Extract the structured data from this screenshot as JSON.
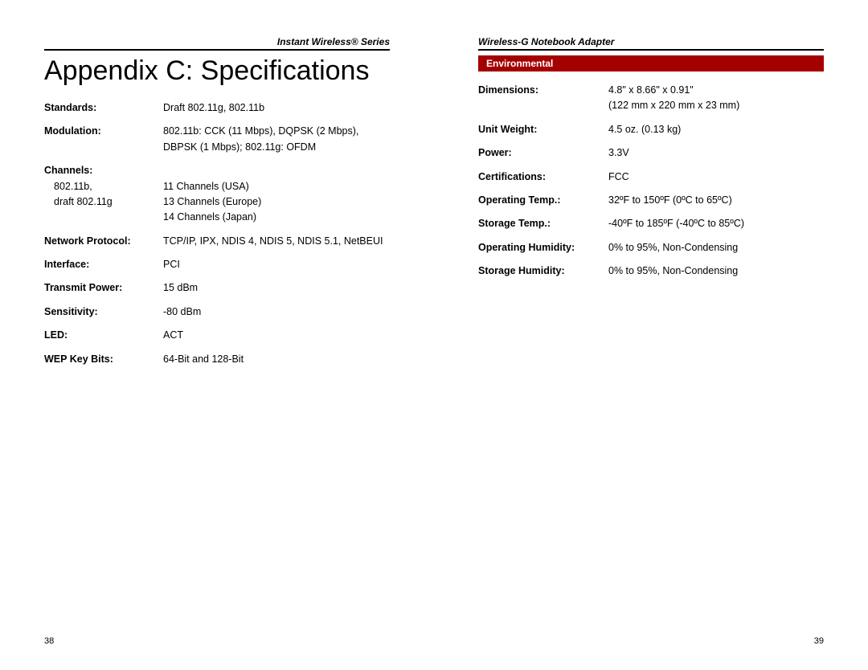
{
  "left": {
    "header": "Instant Wireless® Series",
    "title": "Appendix C: Specifications",
    "rows": [
      {
        "label": "Standards:",
        "value": "Draft 802.11g, 802.11b"
      },
      {
        "label": "Modulation:",
        "value": "802.11b: CCK (11 Mbps), DQPSK (2 Mbps), DBPSK (1 Mbps); 802.11g: OFDM"
      },
      {
        "label": "Channels:",
        "value": ""
      },
      {
        "sublabel": "802.11b,",
        "value": "11 Channels (USA)"
      },
      {
        "sublabel": "draft 802.11g",
        "value": "13 Channels (Europe)"
      },
      {
        "sublabel": "",
        "value": "14 Channels (Japan)"
      },
      {
        "label": "Network Protocol:",
        "value": "TCP/IP, IPX, NDIS 4, NDIS 5, NDIS 5.1, NetBEUI"
      },
      {
        "label": "Interface:",
        "value": "PCI"
      },
      {
        "label": "Transmit Power:",
        "value": "15 dBm"
      },
      {
        "label": "Sensitivity:",
        "value": "-80 dBm"
      },
      {
        "label": "LED:",
        "value": "ACT"
      },
      {
        "label": "WEP Key Bits:",
        "value": "64-Bit and 128-Bit"
      }
    ],
    "pagenum": "38"
  },
  "right": {
    "header": "Wireless-G Notebook Adapter",
    "section": "Environmental",
    "rows": [
      {
        "label": "Dimensions:",
        "value": "4.8\" x 8.66\" x 0.91\"\n(122 mm x 220 mm x 23 mm)"
      },
      {
        "label": "Unit Weight:",
        "value": "4.5 oz. (0.13 kg)"
      },
      {
        "label": "Power:",
        "value": "3.3V"
      },
      {
        "label": "Certifications:",
        "value": "FCC"
      },
      {
        "label": "Operating Temp.:",
        "value": "32ºF to 150ºF (0ºC to 65ºC)"
      },
      {
        "label": "Storage Temp.:",
        "value": "-40ºF to 185ºF (-40ºC to 85ºC)"
      },
      {
        "label": "Operating Humidity:",
        "value": "0% to 95%, Non-Condensing"
      },
      {
        "label": "Storage Humidity:",
        "value": "0% to 95%, Non-Condensing"
      }
    ],
    "pagenum": "39"
  },
  "colors": {
    "section_bg": "#a50000",
    "section_fg": "#ffffff",
    "text": "#000000",
    "bg": "#ffffff"
  }
}
